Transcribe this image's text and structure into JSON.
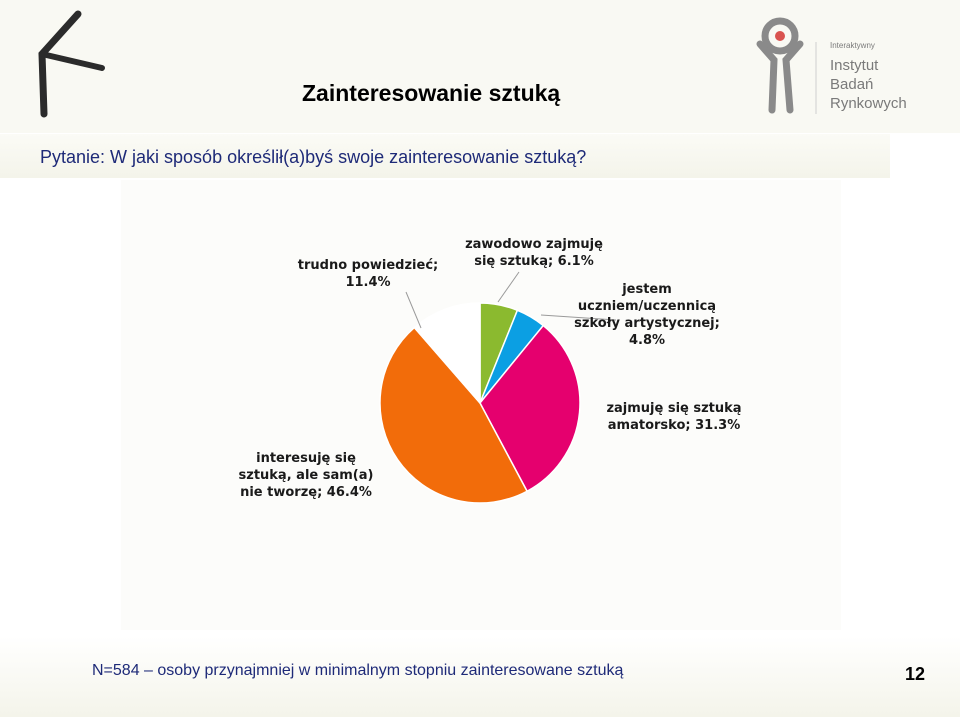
{
  "slide": {
    "title": "Zainteresowanie sztuką",
    "question": "Pytanie: W jaki sposób określił(a)byś swoje zainteresowanie sztuką?",
    "footer_note": "N=584 – osoby przynajmniej w minimalnym stopniu zainteresowane sztuką",
    "page_number": "12"
  },
  "brand": {
    "small": "Interaktywny",
    "line1": "Instytut",
    "line2": "Badań",
    "line3": "Rynkowych",
    "colors": {
      "logo_gray": "#8a8a8a",
      "logo_accent": "#d9534f",
      "left_logo": "#2b2b2b"
    }
  },
  "chart_data": {
    "type": "pie",
    "title": "",
    "slices": [
      {
        "label": "zawodowo zajmuję się sztuką; 6.1%",
        "value": 6.1,
        "color": "#8bba2f"
      },
      {
        "label": "jestem uczniem/uczennicą szkoły artystycznej; 4.8%",
        "value": 4.8,
        "color": "#0b9fe3"
      },
      {
        "label": "zajmuję się sztuką amatorsko; 31.3%",
        "value": 31.3,
        "color": "#e5006e"
      },
      {
        "label": "interesuję się sztuką, ale sam(a) nie tworzę; 46.4%",
        "value": 46.4,
        "color": "#f26c0a"
      },
      {
        "label": "trudno powiedzieć; 11.4%",
        "value": 11.4,
        "color": "#ffffff"
      }
    ],
    "label_lines": [
      "zawodowo zajmuję\nsię sztuką; 6.1%",
      "jestem\nuczniem/uczennicą\nszkoły artystycznej;\n4.8%",
      "zajmuję się sztuką\namatorsko; 31.3%",
      "interesuję się\nsztuką, ale sam(a)\nnie tworzę; 46.4%",
      "trudno powiedzieć;\n11.4%"
    ],
    "start_angle_deg": 0,
    "direction": "clockwise",
    "legend": "none"
  }
}
